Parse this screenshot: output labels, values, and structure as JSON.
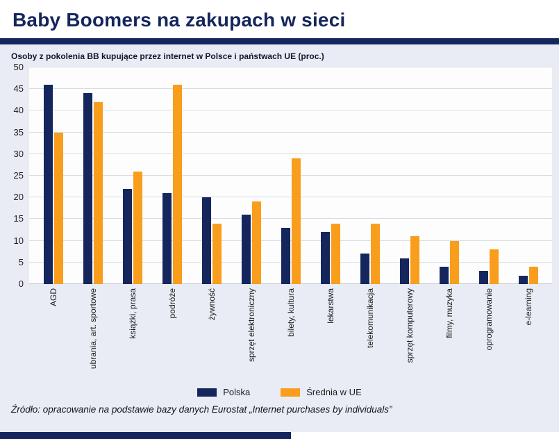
{
  "header": {
    "title": "Baby Boomers na zakupach w sieci"
  },
  "source": "Źródło: opracowanie na podstawie bazy danych Eurostat „Internet purchases by individuals”",
  "colors": {
    "navy": "#15265d",
    "orange": "#f99e1c",
    "background": "#e9ecf4"
  },
  "chart_data": {
    "type": "bar",
    "title": "Osoby z pokolenia BB kupujące przez internet w Polsce i państwach UE (proc.)",
    "categories": [
      "AGD",
      "ubrania, art. sportowe",
      "książki, prasa",
      "podróże",
      "żywność",
      "sprzęt elektroniczny",
      "bilety, kultura",
      "lekarstwa",
      "telekomunikacja",
      "sprzęt komputerowy",
      "filmy, muzyka",
      "oprogramowanie",
      "e-learning"
    ],
    "series": [
      {
        "name": "Polska",
        "color": "#15265d",
        "values": [
          46,
          44,
          22,
          21,
          20,
          16,
          13,
          12,
          7,
          6,
          4,
          3,
          2
        ]
      },
      {
        "name": "Średnia w UE",
        "color": "#f99e1c",
        "values": [
          35,
          42,
          26,
          46,
          14,
          19,
          29,
          14,
          14,
          11,
          10,
          8,
          4
        ]
      }
    ],
    "xlabel": "",
    "ylabel": "",
    "ylim": [
      0,
      50
    ],
    "ytick_step": 5,
    "grid": true,
    "legend_position": "bottom"
  }
}
